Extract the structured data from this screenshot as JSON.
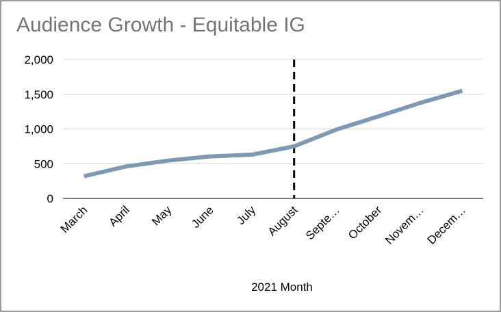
{
  "chart_data": {
    "type": "line",
    "title": "Audience Growth - Equitable IG",
    "xlabel": "2021 Month",
    "ylabel": "",
    "categories": [
      "March",
      "April",
      "May",
      "June",
      "July",
      "August",
      "Septe…",
      "October",
      "Novem…",
      "Decem…"
    ],
    "series": [
      {
        "values": [
          320,
          460,
          545,
          605,
          630,
          750,
          990,
          1180,
          1375,
          1550
        ]
      }
    ],
    "ylim": [
      0,
      2000
    ],
    "yticks": [
      "0",
      "500",
      "1,000",
      "1,500",
      "2,000"
    ],
    "ytick_values": [
      0,
      500,
      1000,
      1500,
      2000
    ],
    "grid": true,
    "marker_category": "August",
    "line_color": "#7d9ab5",
    "marker_color": "#000000"
  }
}
